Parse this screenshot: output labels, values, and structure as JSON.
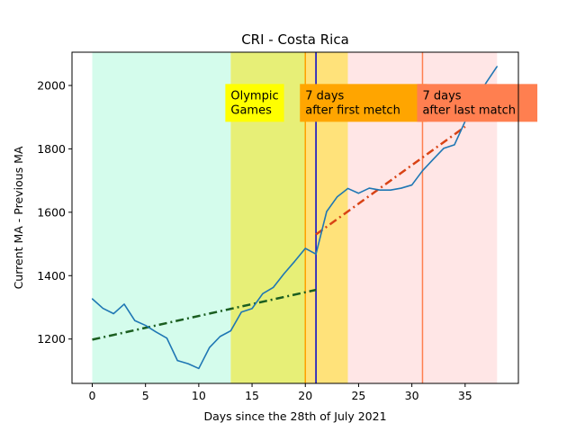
{
  "chart_data": {
    "type": "line",
    "title": "CRI - Costa Rica",
    "xlabel": "Days since the 28th of July 2021",
    "ylabel": "Current MA - Previous MA",
    "xlim": [
      -1.9,
      40
    ],
    "ylim": [
      1060,
      2105
    ],
    "xticks": [
      0,
      5,
      10,
      15,
      20,
      25,
      30,
      35
    ],
    "yticks": [
      1200,
      1400,
      1600,
      1800,
      2000
    ],
    "grid": false,
    "x": [
      0,
      1,
      2,
      3,
      4,
      5,
      6,
      7,
      8,
      9,
      10,
      11,
      12,
      13,
      14,
      15,
      16,
      17,
      18,
      19,
      20,
      21,
      22,
      23,
      24,
      25,
      26,
      27,
      28,
      29,
      30,
      31,
      32,
      33,
      34,
      35,
      36,
      37,
      38
    ],
    "series": [
      {
        "color": "#1f77b4",
        "values": [
          1327,
          1297,
          1280,
          1310,
          1258,
          1243,
          1222,
          1203,
          1132,
          1122,
          1107,
          1173,
          1208,
          1226,
          1285,
          1296,
          1343,
          1363,
          1406,
          1445,
          1486,
          1468,
          1602,
          1649,
          1675,
          1660,
          1676,
          1670,
          1670,
          1676,
          1686,
          1731,
          1767,
          1802,
          1813,
          1887,
          1955,
          2010,
          2060
        ]
      }
    ],
    "trend_lines": [
      {
        "color": "#1b5e20",
        "style": "dash-dot",
        "x": [
          0,
          21
        ],
        "y": [
          1198,
          1355
        ]
      },
      {
        "color": "#d84315",
        "style": "dash-dot",
        "x": [
          21,
          35
        ],
        "y": [
          1530,
          1870
        ]
      }
    ],
    "bands": [
      {
        "x": [
          0,
          13
        ],
        "color": "#d4fcec"
      },
      {
        "x": [
          13,
          20
        ],
        "color": "#e7ef77"
      },
      {
        "x": [
          20,
          24
        ],
        "color": "#ffe27a"
      },
      {
        "x": [
          24,
          38
        ],
        "color": "#ffe6e6"
      }
    ],
    "vlines": [
      {
        "x": 20,
        "color": "#ffa000"
      },
      {
        "x": 21,
        "color": "#0000cc"
      },
      {
        "x": 31,
        "color": "#ff7f50"
      }
    ],
    "annotations": [
      {
        "lines": [
          "Olympic",
          "Games"
        ],
        "x": 13,
        "y": 1945,
        "bg": "#ffff00"
      },
      {
        "lines": [
          "7 days",
          "after first metch"
        ],
        "x": 20,
        "y": 1945,
        "bg": "#ffa500"
      },
      {
        "lines": [
          "7 days",
          "after last match"
        ],
        "x": 31,
        "y": 1945,
        "bg": "#ff7f50"
      }
    ]
  }
}
